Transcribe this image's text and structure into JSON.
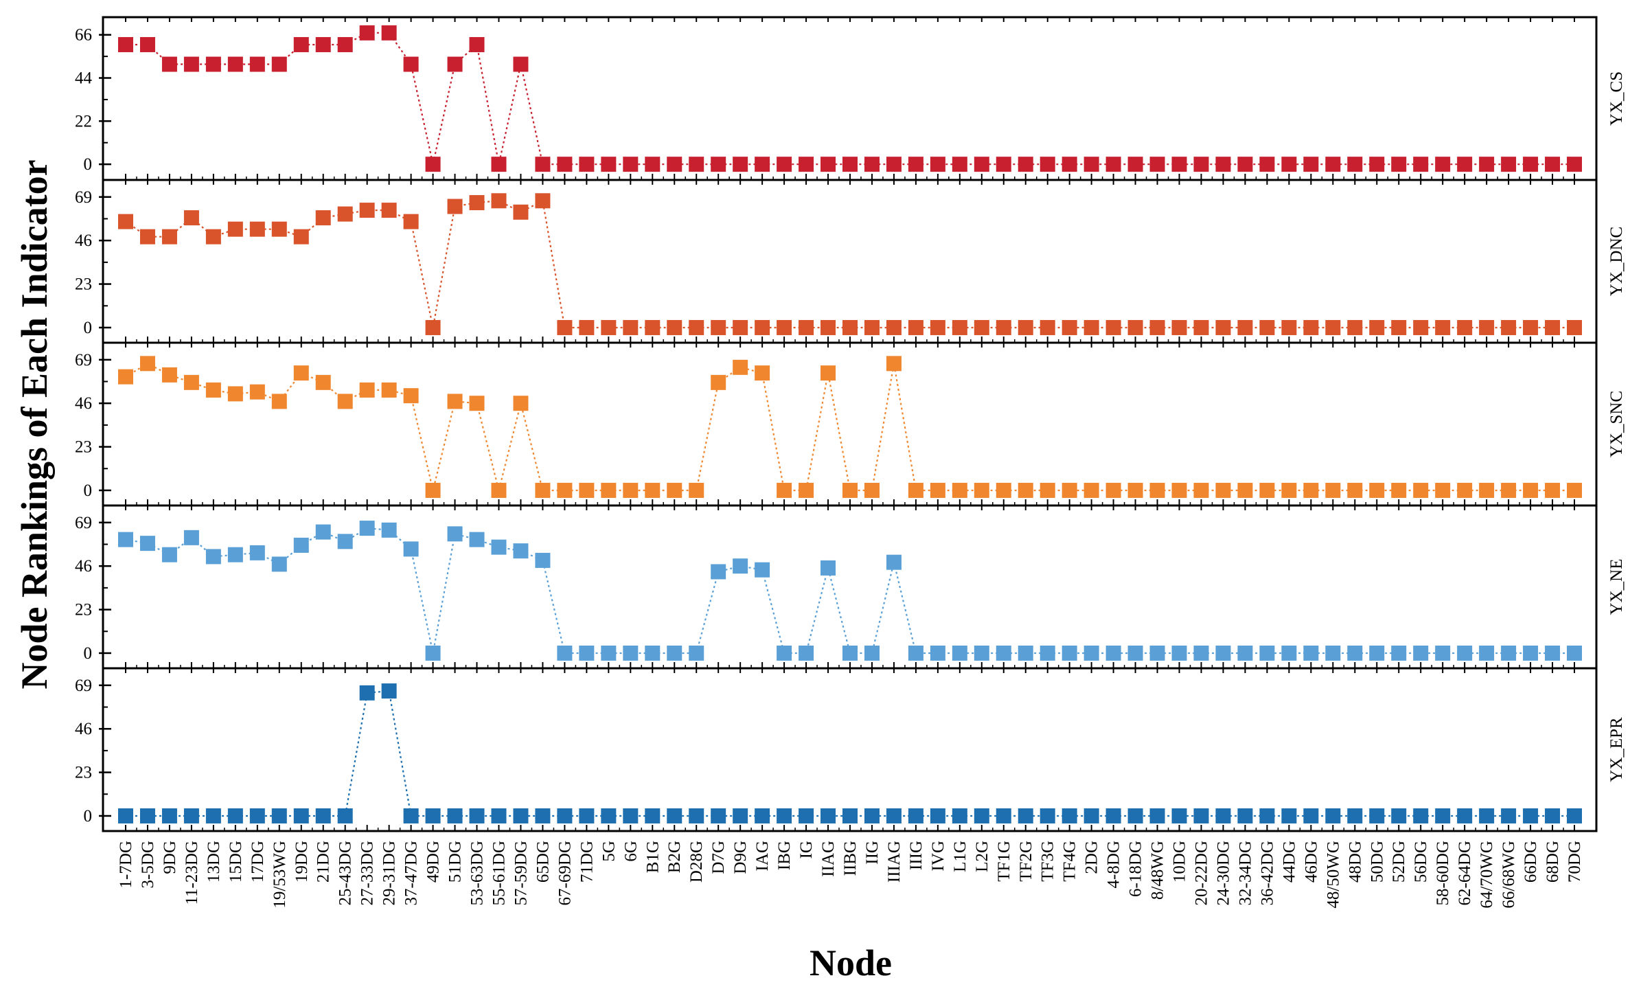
{
  "chart_data": {
    "type": "line",
    "xlabel": "Node",
    "ylabel": "Node Rankings of Each Indicator",
    "categories": [
      "1-7DG",
      "3-5DG",
      "9DG",
      "11-23DG",
      "13DG",
      "15DG",
      "17DG",
      "19/53WG",
      "19DG",
      "21DG",
      "25-43DG",
      "27-33DG",
      "29-31DG",
      "37-47DG",
      "49DG",
      "51DG",
      "53-63DG",
      "55-61DG",
      "57-59DG",
      "65DG",
      "67-69DG",
      "71DG",
      "5G",
      "6G",
      "B1G",
      "B2G",
      "D28G",
      "D7G",
      "D9G",
      "IAG",
      "IBG",
      "IG",
      "IIAG",
      "IIBG",
      "IIG",
      "IIIAG",
      "IIIG",
      "IVG",
      "L1G",
      "L2G",
      "TF1G",
      "TF2G",
      "TF3G",
      "TF4G",
      "2DG",
      "4-8DG",
      "6-18DG",
      "8/48WG",
      "10DG",
      "20-22DG",
      "24-30DG",
      "32-34DG",
      "36-42DG",
      "44DG",
      "46DG",
      "48/50WG",
      "48DG",
      "50DG",
      "52DG",
      "56DG",
      "58-60DG",
      "62-64DG",
      "64/70WG",
      "66/68WG",
      "66DG",
      "68DG",
      "70DG"
    ],
    "series": [
      {
        "name": "YX_CS",
        "color": "#c8202f",
        "yticks": [
          0,
          22,
          44,
          66
        ],
        "ylim": [
          -8,
          75
        ],
        "values": [
          61,
          61,
          51,
          51,
          51,
          51,
          51,
          51,
          61,
          61,
          61,
          67,
          67,
          51,
          0,
          51,
          61,
          0,
          51,
          0,
          0,
          0,
          0,
          0,
          0,
          0,
          0,
          0,
          0,
          0,
          0,
          0,
          0,
          0,
          0,
          0,
          0,
          0,
          0,
          0,
          0,
          0,
          0,
          0,
          0,
          0,
          0,
          0,
          0,
          0,
          0,
          0,
          0,
          0,
          0,
          0,
          0,
          0,
          0,
          0,
          0,
          0,
          0,
          0,
          0,
          0,
          0
        ]
      },
      {
        "name": "YX_DNC",
        "color": "#d9532b",
        "yticks": [
          0,
          23,
          46,
          69
        ],
        "ylim": [
          -8,
          78
        ],
        "values": [
          56,
          48,
          48,
          58,
          48,
          52,
          52,
          52,
          48,
          58,
          60,
          62,
          62,
          56,
          0,
          64,
          66,
          67,
          61,
          67,
          0,
          0,
          0,
          0,
          0,
          0,
          0,
          0,
          0,
          0,
          0,
          0,
          0,
          0,
          0,
          0,
          0,
          0,
          0,
          0,
          0,
          0,
          0,
          0,
          0,
          0,
          0,
          0,
          0,
          0,
          0,
          0,
          0,
          0,
          0,
          0,
          0,
          0,
          0,
          0,
          0,
          0,
          0,
          0,
          0,
          0,
          0
        ]
      },
      {
        "name": "YX_SNC",
        "color": "#f0872f",
        "yticks": [
          0,
          23,
          46,
          69
        ],
        "ylim": [
          -8,
          78
        ],
        "values": [
          60,
          67,
          61,
          57,
          53,
          51,
          52,
          47,
          62,
          57,
          47,
          53,
          53,
          50,
          0,
          47,
          46,
          0,
          46,
          0,
          0,
          0,
          0,
          0,
          0,
          0,
          0,
          57,
          65,
          62,
          0,
          0,
          62,
          0,
          0,
          67,
          0,
          0,
          0,
          0,
          0,
          0,
          0,
          0,
          0,
          0,
          0,
          0,
          0,
          0,
          0,
          0,
          0,
          0,
          0,
          0,
          0,
          0,
          0,
          0,
          0,
          0,
          0,
          0,
          0,
          0,
          0
        ]
      },
      {
        "name": "YX_NE",
        "color": "#5aa0d6",
        "yticks": [
          0,
          23,
          46,
          69
        ],
        "ylim": [
          -8,
          78
        ],
        "values": [
          60,
          58,
          52,
          61,
          51,
          52,
          53,
          47,
          57,
          64,
          59,
          66,
          65,
          55,
          0,
          63,
          60,
          56,
          54,
          49,
          0,
          0,
          0,
          0,
          0,
          0,
          0,
          43,
          46,
          44,
          0,
          0,
          45,
          0,
          0,
          48,
          0,
          0,
          0,
          0,
          0,
          0,
          0,
          0,
          0,
          0,
          0,
          0,
          0,
          0,
          0,
          0,
          0,
          0,
          0,
          0,
          0,
          0,
          0,
          0,
          0,
          0,
          0,
          0,
          0,
          0,
          0
        ]
      },
      {
        "name": "YX_EPR",
        "color": "#1d6faf",
        "yticks": [
          0,
          23,
          46,
          69
        ],
        "ylim": [
          -8,
          78
        ],
        "values": [
          0,
          0,
          0,
          0,
          0,
          0,
          0,
          0,
          0,
          0,
          0,
          65,
          66,
          0,
          0,
          0,
          0,
          0,
          0,
          0,
          0,
          0,
          0,
          0,
          0,
          0,
          0,
          0,
          0,
          0,
          0,
          0,
          0,
          0,
          0,
          0,
          0,
          0,
          0,
          0,
          0,
          0,
          0,
          0,
          0,
          0,
          0,
          0,
          0,
          0,
          0,
          0,
          0,
          0,
          0,
          0,
          0,
          0,
          0,
          0,
          0,
          0,
          0,
          0,
          0,
          0,
          0
        ]
      }
    ]
  }
}
